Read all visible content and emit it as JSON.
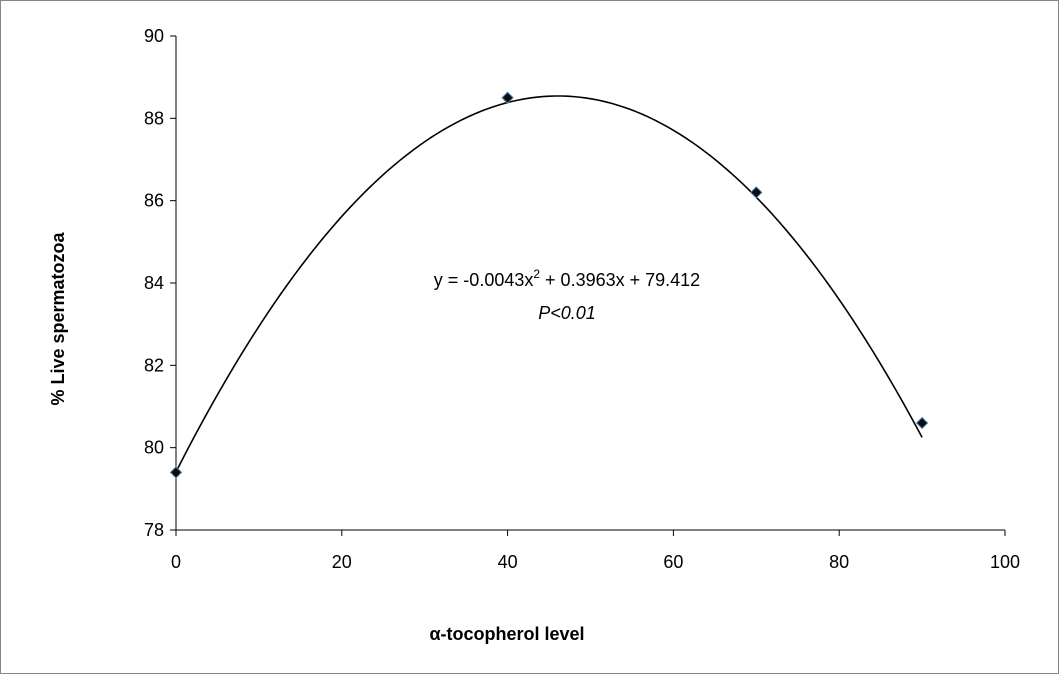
{
  "chart_data": {
    "type": "scatter",
    "xlabel": "α-tocopherol level",
    "ylabel": "% Live spermatozoa",
    "xlim": [
      0,
      100
    ],
    "ylim": [
      78,
      90
    ],
    "x_ticks": [
      0,
      20,
      40,
      60,
      80,
      100
    ],
    "y_ticks": [
      78,
      80,
      82,
      84,
      86,
      88,
      90
    ],
    "points": [
      {
        "x": 0,
        "y": 79.4
      },
      {
        "x": 40,
        "y": 88.5
      },
      {
        "x": 70,
        "y": 86.2
      },
      {
        "x": 90,
        "y": 80.6
      }
    ],
    "trendline": {
      "type": "polynomial",
      "coefficients": [
        -0.0043,
        0.3963,
        79.412
      ],
      "x_range": [
        0,
        90
      ]
    },
    "annotations": {
      "equation_prefix": "y = -0.0043x",
      "equation_superscript": "2",
      "equation_suffix": " + 0.3963x + 79.412",
      "significance": "P<0.01"
    },
    "grid": false,
    "legend": "none",
    "colors": {
      "marker_fill": "#0d0d0d",
      "marker_edge": "#4f81bd",
      "trendline": "#000000",
      "axis": "#000000"
    }
  }
}
